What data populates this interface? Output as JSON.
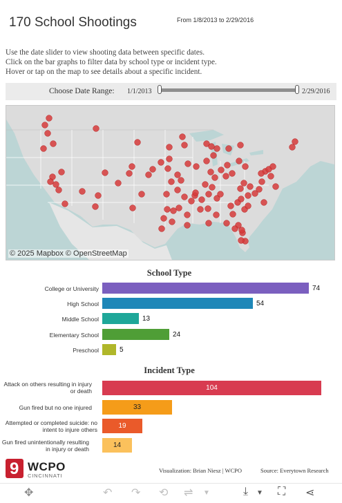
{
  "header": {
    "title": "170 School Shootings",
    "date_range": "From 1/8/2013 to 2/29/2016"
  },
  "instructions": [
    "Use the date slider to view shooting data between specific dates.",
    "Click on the bar graphs to filter data by school type or incident type.",
    "Hover or tap on the map to see details about a specific incident."
  ],
  "slider": {
    "label": "Choose Date Range:",
    "start": "1/1/2013",
    "end": "2/29/2016"
  },
  "map": {
    "attribution": "© 2025 Mapbox  © OpenStreetMap",
    "marker_color": "#d63b3b"
  },
  "school_type": {
    "title": "School Type",
    "color_college": "#7b5fbf",
    "color_high": "#1e87b8",
    "color_middle": "#1ea799",
    "color_elementary": "#4f9e36",
    "color_preschool": "#b0b72a"
  },
  "incident_type": {
    "title": "Incident Type",
    "color_attack": "#d83b50",
    "color_no_injury": "#f59c19",
    "color_suicide": "#ea5a2a",
    "color_unintentional": "#fbc15c"
  },
  "chart_data": [
    {
      "type": "bar",
      "orientation": "horizontal",
      "title": "School Type",
      "categories": [
        "College or University",
        "High School",
        "Middle School",
        "Elementary School",
        "Preschool"
      ],
      "values": [
        74,
        54,
        13,
        24,
        5
      ]
    },
    {
      "type": "bar",
      "orientation": "horizontal",
      "title": "Incident Type",
      "categories": [
        "Attack on others resulting in injury or death",
        "Gun fired but no one injured",
        "Attempted or completed suicide: no intent to injure others",
        "Gun fired unintentionally resulting in injury or death"
      ],
      "values": [
        104,
        33,
        19,
        14
      ]
    }
  ],
  "footer": {
    "logo_number": "9",
    "logo_text": "WCPO",
    "logo_sub": "CINCINNATI",
    "credit": "Visualization: Brian Niesz | WCPO",
    "source": "Source: Everytown Research"
  },
  "toolbar": {
    "icons": [
      "move-icon",
      "undo-icon",
      "redo-icon",
      "revert-icon",
      "refresh-icon",
      "download-icon",
      "fullscreen-icon",
      "share-icon"
    ]
  }
}
